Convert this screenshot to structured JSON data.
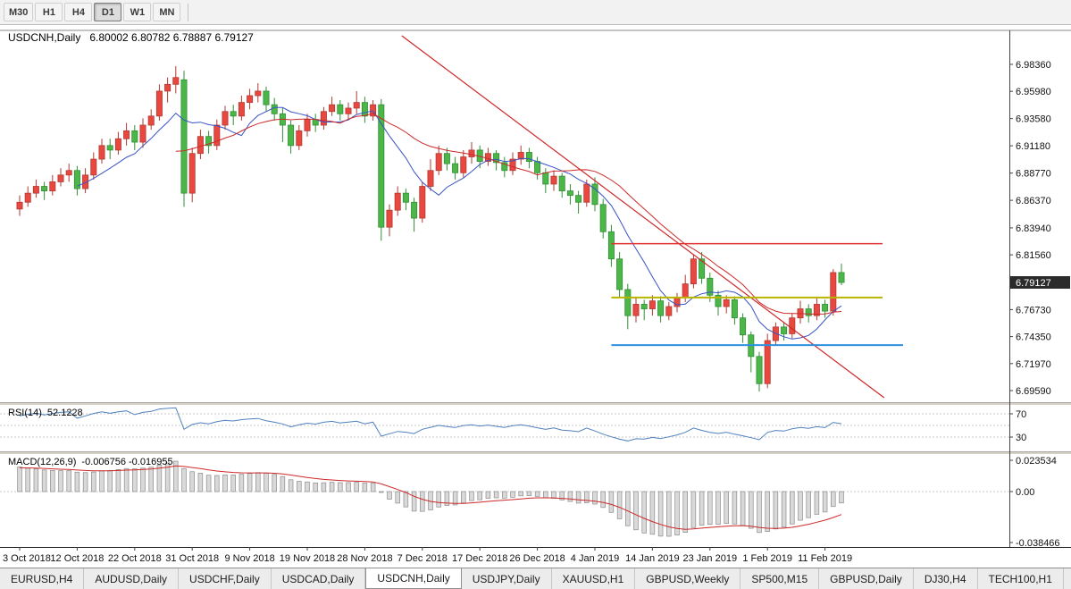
{
  "toolbar": {
    "timeframes": [
      {
        "label": "M30",
        "active": false
      },
      {
        "label": "H1",
        "active": false
      },
      {
        "label": "H4",
        "active": false
      },
      {
        "label": "D1",
        "active": true
      },
      {
        "label": "W1",
        "active": false
      },
      {
        "label": "MN",
        "active": false
      }
    ]
  },
  "chart_data": {
    "type": "candlestick",
    "title": "USDCNH,Daily",
    "ohlc_readout": "6.80002 6.80782 6.78887 6.79127",
    "current_price": "6.79127",
    "price_axis_labels": [
      "6.98360",
      "6.95980",
      "6.93580",
      "6.91180",
      "6.88770",
      "6.86370",
      "6.83940",
      "6.81560",
      "6.76730",
      "6.74350",
      "6.71970",
      "6.69590"
    ],
    "date_ticks": {
      "indices": [
        0,
        7,
        14,
        21,
        28,
        35,
        42,
        49,
        56,
        63,
        70,
        77,
        84,
        91,
        98
      ],
      "labels": [
        "3 Oct 2018",
        "12 Oct 2018",
        "22 Oct 2018",
        "31 Oct 2018",
        "9 Nov 2018",
        "19 Nov 2018",
        "28 Nov 2018",
        "7 Dec 2018",
        "17 Dec 2018",
        "26 Dec 2018",
        "4 Jan 2019",
        "14 Jan 2019",
        "23 Jan 2019",
        "1 Feb 2019",
        "11 Feb 2019"
      ]
    },
    "candles": [
      [
        6.856,
        6.868,
        6.85,
        6.862
      ],
      [
        6.862,
        6.876,
        6.858,
        6.87
      ],
      [
        6.87,
        6.882,
        6.866,
        6.876
      ],
      [
        6.876,
        6.88,
        6.864,
        6.872
      ],
      [
        6.872,
        6.886,
        6.868,
        6.88
      ],
      [
        6.88,
        6.892,
        6.876,
        6.886
      ],
      [
        6.886,
        6.896,
        6.88,
        6.89
      ],
      [
        6.89,
        6.894,
        6.868,
        6.874
      ],
      [
        6.874,
        6.892,
        6.87,
        6.886
      ],
      [
        6.886,
        6.906,
        6.882,
        6.9
      ],
      [
        6.9,
        6.918,
        6.896,
        6.912
      ],
      [
        6.912,
        6.918,
        6.9,
        6.908
      ],
      [
        6.908,
        6.924,
        6.904,
        6.918
      ],
      [
        6.918,
        6.932,
        6.912,
        6.925
      ],
      [
        6.925,
        6.93,
        6.908,
        6.915
      ],
      [
        6.915,
        6.936,
        6.91,
        6.93
      ],
      [
        6.93,
        6.944,
        6.926,
        6.938
      ],
      [
        6.938,
        6.966,
        6.934,
        6.96
      ],
      [
        6.96,
        6.972,
        6.95,
        6.966
      ],
      [
        6.966,
        6.982,
        6.958,
        6.972
      ],
      [
        6.97,
        6.978,
        6.858,
        6.87
      ],
      [
        6.87,
        6.91,
        6.862,
        6.905
      ],
      [
        6.905,
        6.926,
        6.9,
        6.92
      ],
      [
        6.92,
        6.925,
        6.905,
        6.912
      ],
      [
        6.912,
        6.935,
        6.908,
        6.93
      ],
      [
        6.93,
        6.947,
        6.926,
        6.942
      ],
      [
        6.942,
        6.948,
        6.93,
        6.938
      ],
      [
        6.938,
        6.956,
        6.934,
        6.95
      ],
      [
        6.95,
        6.962,
        6.944,
        6.956
      ],
      [
        6.956,
        6.967,
        6.95,
        6.96
      ],
      [
        6.96,
        6.964,
        6.942,
        6.948
      ],
      [
        6.948,
        6.954,
        6.934,
        6.94
      ],
      [
        6.94,
        6.945,
        6.915,
        6.93
      ],
      [
        6.93,
        6.934,
        6.905,
        6.912
      ],
      [
        6.912,
        6.93,
        6.908,
        6.925
      ],
      [
        6.925,
        6.94,
        6.92,
        6.935
      ],
      [
        6.935,
        6.94,
        6.924,
        6.93
      ],
      [
        6.93,
        6.946,
        6.926,
        6.942
      ],
      [
        6.942,
        6.955,
        6.938,
        6.948
      ],
      [
        6.948,
        6.952,
        6.934,
        6.94
      ],
      [
        6.94,
        6.95,
        6.935,
        6.945
      ],
      [
        6.945,
        6.96,
        6.94,
        6.95
      ],
      [
        6.95,
        6.955,
        6.932,
        6.938
      ],
      [
        6.938,
        6.952,
        6.934,
        6.948
      ],
      [
        6.948,
        6.953,
        6.828,
        6.84
      ],
      [
        6.84,
        6.86,
        6.832,
        6.855
      ],
      [
        6.855,
        6.876,
        6.85,
        6.87
      ],
      [
        6.87,
        6.874,
        6.855,
        6.862
      ],
      [
        6.862,
        6.866,
        6.836,
        6.848
      ],
      [
        6.848,
        6.88,
        6.844,
        6.876
      ],
      [
        6.876,
        6.9,
        6.872,
        6.89
      ],
      [
        6.89,
        6.912,
        6.886,
        6.905
      ],
      [
        6.905,
        6.91,
        6.89,
        6.896
      ],
      [
        6.896,
        6.902,
        6.882,
        6.888
      ],
      [
        6.888,
        6.908,
        6.884,
        6.902
      ],
      [
        6.902,
        6.915,
        6.896,
        6.908
      ],
      [
        6.908,
        6.912,
        6.892,
        6.898
      ],
      [
        6.898,
        6.91,
        6.894,
        6.905
      ],
      [
        6.905,
        6.908,
        6.89,
        6.897
      ],
      [
        6.897,
        6.902,
        6.884,
        6.89
      ],
      [
        6.89,
        6.906,
        6.886,
        6.9
      ],
      [
        6.9,
        6.912,
        6.895,
        6.906
      ],
      [
        6.906,
        6.91,
        6.892,
        6.898
      ],
      [
        6.898,
        6.902,
        6.882,
        6.888
      ],
      [
        6.888,
        6.892,
        6.87,
        6.878
      ],
      [
        6.878,
        6.89,
        6.872,
        6.885
      ],
      [
        6.885,
        6.888,
        6.866,
        6.872
      ],
      [
        6.872,
        6.878,
        6.86,
        6.868
      ],
      [
        6.868,
        6.872,
        6.852,
        6.862
      ],
      [
        6.862,
        6.882,
        6.858,
        6.878
      ],
      [
        6.878,
        6.884,
        6.854,
        6.86
      ],
      [
        6.86,
        6.865,
        6.83,
        6.836
      ],
      [
        6.836,
        6.842,
        6.805,
        6.812
      ],
      [
        6.812,
        6.818,
        6.778,
        6.785
      ],
      [
        6.785,
        6.79,
        6.75,
        6.762
      ],
      [
        6.762,
        6.778,
        6.756,
        6.772
      ],
      [
        6.772,
        6.776,
        6.758,
        6.768
      ],
      [
        6.768,
        6.78,
        6.762,
        6.775
      ],
      [
        6.775,
        6.779,
        6.756,
        6.762
      ],
      [
        6.762,
        6.774,
        6.758,
        6.77
      ],
      [
        6.77,
        6.782,
        6.765,
        6.778
      ],
      [
        6.778,
        6.798,
        6.774,
        6.79
      ],
      [
        6.79,
        6.816,
        6.786,
        6.812
      ],
      [
        6.812,
        6.818,
        6.79,
        6.795
      ],
      [
        6.795,
        6.8,
        6.774,
        6.78
      ],
      [
        6.78,
        6.784,
        6.762,
        6.77
      ],
      [
        6.77,
        6.78,
        6.764,
        6.776
      ],
      [
        6.776,
        6.779,
        6.754,
        6.76
      ],
      [
        6.76,
        6.764,
        6.738,
        6.745
      ],
      [
        6.745,
        6.748,
        6.712,
        6.726
      ],
      [
        6.726,
        6.73,
        6.695,
        6.702
      ],
      [
        6.702,
        6.746,
        6.698,
        6.74
      ],
      [
        6.74,
        6.756,
        6.736,
        6.752
      ],
      [
        6.752,
        6.756,
        6.74,
        6.746
      ],
      [
        6.746,
        6.764,
        6.742,
        6.76
      ],
      [
        6.76,
        6.775,
        6.755,
        6.768
      ],
      [
        6.768,
        6.772,
        6.756,
        6.762
      ],
      [
        6.762,
        6.778,
        6.758,
        6.772
      ],
      [
        6.772,
        6.776,
        6.76,
        6.766
      ],
      [
        6.766,
        6.803,
        6.762,
        6.8
      ],
      [
        6.80002,
        6.80782,
        6.78887,
        6.79127
      ]
    ],
    "colors": {
      "bull": "#e8483f",
      "bull_edge": "#b03a32",
      "bear": "#4cb648",
      "bear_edge": "#2f8f35",
      "ma_fast": "#3952c4",
      "ma_slow": "#cc2929",
      "trendline": "#cc2929",
      "hline_red": "#e03030",
      "hline_yellow": "#b8b400",
      "hline_blue": "#2e8fe0",
      "rsi_line": "#4f81bd",
      "macd_hist_fill": "#d9d9d9",
      "macd_hist_edge": "#8c8c8c",
      "macd_signal": "#cc2929",
      "badge_bg": "#2b2b2b",
      "badge_text": "#ffffff"
    },
    "overlays": {
      "hlines": [
        {
          "price": 6.8255,
          "i1": 72,
          "i2": 105,
          "color_key": "hline_red",
          "width": 1.5
        },
        {
          "price": 6.778,
          "i1": 72,
          "i2": 105,
          "color_key": "hline_yellow",
          "width": 2
        },
        {
          "price": 6.736,
          "i1": 72,
          "i2": 107.5,
          "color_key": "hline_blue",
          "width": 2
        }
      ],
      "trendline": {
        "i1": 46.5,
        "p1": 7.0088,
        "i2": 105.2,
        "p2": 6.6896
      },
      "ma_fast_period": 8,
      "ma_slow_period": 20
    },
    "rsi": {
      "label": "RSI(14)",
      "display_value": "52.1228",
      "period": 14,
      "levels": [
        70,
        30
      ],
      "level_labels": [
        "70",
        "30"
      ],
      "guide_levels": [
        70,
        50,
        30
      ]
    },
    "macd": {
      "label": "MACD(12,26,9)",
      "display_values": "-0.006756 -0.016955",
      "fast": 12,
      "slow": 26,
      "signal": 9,
      "axis_labels": [
        "0.023534",
        "0.00",
        "-0.038466"
      ]
    }
  },
  "tabs": [
    {
      "label": "EURUSD,H4",
      "active": false
    },
    {
      "label": "AUDUSD,Daily",
      "active": false
    },
    {
      "label": "USDCHF,Daily",
      "active": false
    },
    {
      "label": "USDCAD,Daily",
      "active": false
    },
    {
      "label": "USDCNH,Daily",
      "active": true
    },
    {
      "label": "USDJPY,Daily",
      "active": false
    },
    {
      "label": "XAUUSD,H1",
      "active": false
    },
    {
      "label": "GBPUSD,Weekly",
      "active": false
    },
    {
      "label": "SP500,M15",
      "active": false
    },
    {
      "label": "GBPUSD,Daily",
      "active": false
    },
    {
      "label": "DJ30,H4",
      "active": false
    },
    {
      "label": "TECH100,H1",
      "active": false
    }
  ]
}
